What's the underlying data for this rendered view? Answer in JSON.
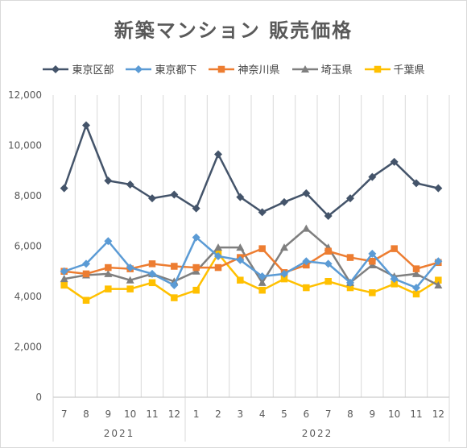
{
  "chart_data": {
    "type": "line",
    "title": "新築マンション 販売価格",
    "categories": [
      "7",
      "8",
      "9",
      "10",
      "11",
      "12",
      "1",
      "2",
      "3",
      "4",
      "5",
      "6",
      "7",
      "8",
      "9",
      "10",
      "11",
      "12"
    ],
    "year_groups": [
      {
        "label": "2021",
        "count": 6
      },
      {
        "label": "2022",
        "count": 12
      }
    ],
    "ylim": [
      0,
      12000
    ],
    "yticks": [
      "0",
      "2,000",
      "4,000",
      "6,000",
      "8,000",
      "10,000",
      "12,000"
    ],
    "ytick_values": [
      0,
      2000,
      4000,
      6000,
      8000,
      10000,
      12000
    ],
    "grid": "vertical",
    "legend_position": "top",
    "series": [
      {
        "name": "東京区部",
        "color": "#44546a",
        "marker": "diamond",
        "values": [
          8300,
          10800,
          8600,
          8450,
          7900,
          8050,
          7500,
          9650,
          7950,
          7350,
          7750,
          8100,
          7200,
          7900,
          8750,
          9350,
          8500,
          8300
        ]
      },
      {
        "name": "東京都下",
        "color": "#5b9bd5",
        "marker": "diamond",
        "values": [
          5000,
          5300,
          6200,
          5150,
          4900,
          4450,
          6350,
          5600,
          5450,
          4800,
          4900,
          5400,
          5300,
          4550,
          5700,
          4700,
          4350,
          5400
        ]
      },
      {
        "name": "神奈川県",
        "color": "#ed7d31",
        "marker": "square",
        "values": [
          5000,
          4900,
          5150,
          5100,
          5300,
          5200,
          5150,
          5150,
          5550,
          5900,
          4950,
          5250,
          5800,
          5550,
          5400,
          5900,
          5100,
          5350
        ]
      },
      {
        "name": "埼玉県",
        "color": "#7f7f7f",
        "marker": "triangle",
        "values": [
          4700,
          4850,
          4900,
          4650,
          4900,
          4600,
          5000,
          5950,
          5950,
          4550,
          5950,
          6700,
          5950,
          4550,
          5250,
          4800,
          4900,
          4450
        ]
      },
      {
        "name": "千葉県",
        "color": "#ffc000",
        "marker": "square",
        "values": [
          4450,
          3850,
          4300,
          4300,
          4550,
          3950,
          4250,
          5700,
          4650,
          4250,
          4700,
          4350,
          4600,
          4350,
          4150,
          4500,
          4100,
          4650
        ]
      }
    ]
  }
}
